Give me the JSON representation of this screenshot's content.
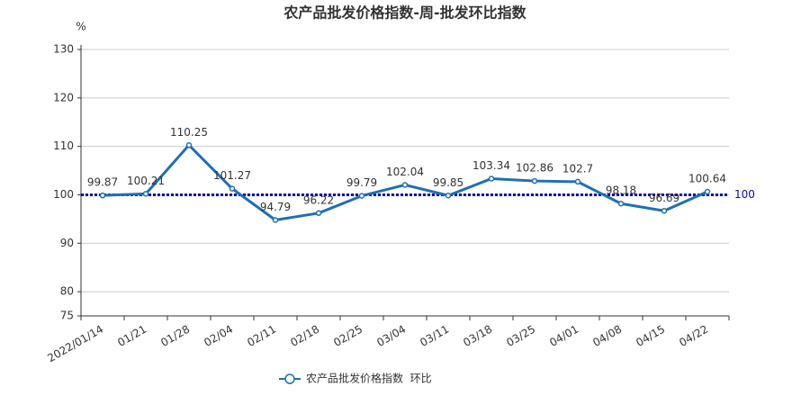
{
  "chart_data": {
    "type": "line",
    "title": "农产品批发价格指数-周-批发环比指数",
    "y_unit": "%",
    "categories": [
      "2022/01/14",
      "01/21",
      "01/28",
      "02/04",
      "02/11",
      "02/18",
      "02/25",
      "03/04",
      "03/11",
      "03/18",
      "03/25",
      "04/01",
      "04/08",
      "04/15",
      "04/22"
    ],
    "series": [
      {
        "name": "农产品批发价格指数  环比",
        "color": "#1f6fb5",
        "values": [
          99.87,
          100.21,
          110.25,
          101.27,
          94.79,
          96.22,
          99.79,
          102.04,
          99.85,
          103.34,
          102.86,
          102.7,
          98.18,
          96.69,
          100.64
        ]
      }
    ],
    "reference_lines": [
      {
        "value": 100,
        "color": "#0a0ab4"
      }
    ],
    "ylim": [
      75,
      130
    ],
    "yticks": [
      75,
      80,
      90,
      100,
      110,
      120,
      130
    ],
    "grid": true
  }
}
